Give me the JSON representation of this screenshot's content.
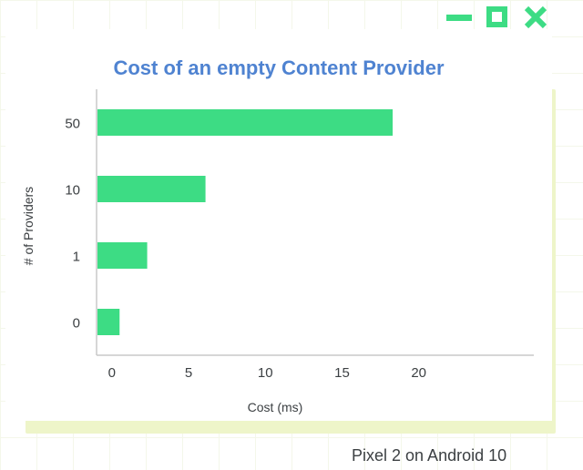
{
  "window_controls": {
    "minimize_icon": "minimize-icon",
    "maximize_icon": "maximize-icon",
    "close_icon": "close-icon",
    "accent_color": "#3ddc84"
  },
  "footer": {
    "text": "Pixel 2 on Android 10"
  },
  "chart_data": {
    "type": "bar",
    "orientation": "horizontal",
    "title": "Cost of an empty Content Provider",
    "xlabel": "Cost (ms)",
    "ylabel": "# of Providers",
    "categories": [
      "50",
      "10",
      "1",
      "0"
    ],
    "values": [
      18.3,
      6.1,
      2.3,
      0.5
    ],
    "xlim": [
      -1,
      27.5
    ],
    "xticks": [
      0,
      5,
      10,
      15,
      20
    ],
    "grid": false,
    "legend": "none",
    "bar_color": "#3ddc84",
    "title_color": "#4f83d1"
  }
}
